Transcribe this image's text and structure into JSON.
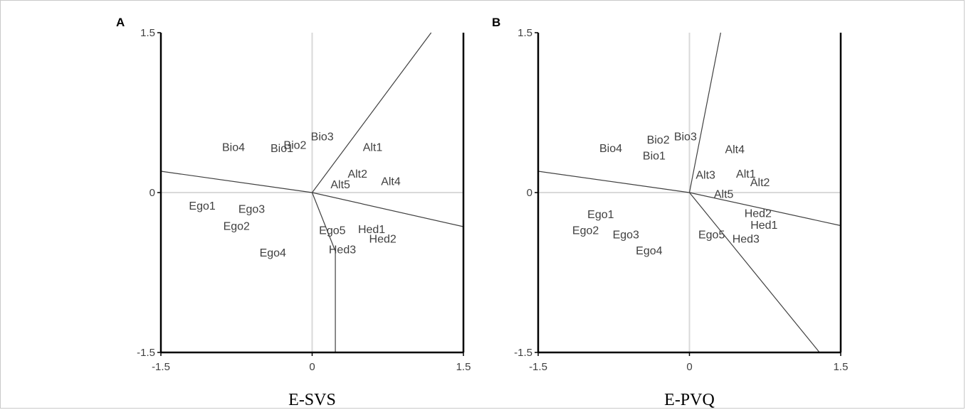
{
  "chart_data": [
    {
      "type": "scatter",
      "panel": "A",
      "title": "",
      "xlabel": "E-SVS",
      "ylabel": "",
      "xlim": [
        -1.5,
        1.5
      ],
      "ylim": [
        -1.5,
        1.5
      ],
      "x_ticks": [
        "-1.5",
        "0",
        "1.5"
      ],
      "y_ticks": [
        "1.5",
        "0",
        "-1.5"
      ],
      "zero_lines": true,
      "points": [
        {
          "label": "Bio4",
          "x": -0.78,
          "y": 0.43
        },
        {
          "label": "Bio1",
          "x": -0.3,
          "y": 0.42
        },
        {
          "label": "Bio2",
          "x": -0.17,
          "y": 0.45
        },
        {
          "label": "Bio3",
          "x": 0.1,
          "y": 0.53
        },
        {
          "label": "Alt1",
          "x": 0.6,
          "y": 0.43
        },
        {
          "label": "Alt2",
          "x": 0.45,
          "y": 0.18
        },
        {
          "label": "Alt4",
          "x": 0.78,
          "y": 0.11
        },
        {
          "label": "Alt5",
          "x": 0.28,
          "y": 0.08
        },
        {
          "label": "Ego1",
          "x": -1.09,
          "y": -0.12
        },
        {
          "label": "Ego3",
          "x": -0.6,
          "y": -0.15
        },
        {
          "label": "Ego2",
          "x": -0.75,
          "y": -0.31
        },
        {
          "label": "Ego4",
          "x": -0.39,
          "y": -0.56
        },
        {
          "label": "Ego5",
          "x": 0.2,
          "y": -0.35
        },
        {
          "label": "Hed1",
          "x": 0.59,
          "y": -0.34
        },
        {
          "label": "Hed2",
          "x": 0.7,
          "y": -0.43
        },
        {
          "label": "Hed3",
          "x": 0.3,
          "y": -0.53
        }
      ],
      "partition_lines": [
        {
          "from": [
            0,
            0
          ],
          "to": [
            -1.5,
            0.2
          ]
        },
        {
          "from": [
            0,
            0
          ],
          "to": [
            1.5,
            -0.32
          ]
        },
        {
          "from": [
            0,
            0
          ],
          "to": [
            1.18,
            1.5
          ]
        },
        {
          "from": [
            0,
            0
          ],
          "to": [
            0.23,
            -0.55
          ]
        },
        {
          "from": [
            0.23,
            -0.55
          ],
          "to": [
            0.23,
            -1.5
          ]
        }
      ]
    },
    {
      "type": "scatter",
      "panel": "B",
      "title": "",
      "xlabel": "E-PVQ",
      "ylabel": "",
      "xlim": [
        -1.5,
        1.5
      ],
      "ylim": [
        -1.5,
        1.5
      ],
      "x_ticks": [
        "-1.5",
        "0",
        "1.5"
      ],
      "y_ticks": [
        "1.5",
        "0",
        "-1.5"
      ],
      "zero_lines": true,
      "points": [
        {
          "label": "Bio4",
          "x": -0.78,
          "y": 0.42
        },
        {
          "label": "Bio2",
          "x": -0.31,
          "y": 0.5
        },
        {
          "label": "Bio3",
          "x": -0.04,
          "y": 0.53
        },
        {
          "label": "Bio1",
          "x": -0.35,
          "y": 0.35
        },
        {
          "label": "Alt4",
          "x": 0.45,
          "y": 0.41
        },
        {
          "label": "Alt3",
          "x": 0.16,
          "y": 0.17
        },
        {
          "label": "Alt1",
          "x": 0.56,
          "y": 0.18
        },
        {
          "label": "Alt2",
          "x": 0.7,
          "y": 0.1
        },
        {
          "label": "Alt5",
          "x": 0.34,
          "y": -0.01
        },
        {
          "label": "Ego1",
          "x": -0.88,
          "y": -0.2
        },
        {
          "label": "Ego2",
          "x": -1.03,
          "y": -0.35
        },
        {
          "label": "Ego3",
          "x": -0.63,
          "y": -0.39
        },
        {
          "label": "Ego4",
          "x": -0.4,
          "y": -0.54
        },
        {
          "label": "Ego5",
          "x": 0.22,
          "y": -0.39
        },
        {
          "label": "Hed2",
          "x": 0.68,
          "y": -0.19
        },
        {
          "label": "Hed1",
          "x": 0.74,
          "y": -0.3
        },
        {
          "label": "Hed3",
          "x": 0.56,
          "y": -0.43
        }
      ],
      "partition_lines": [
        {
          "from": [
            0,
            0
          ],
          "to": [
            -1.5,
            0.2
          ]
        },
        {
          "from": [
            0,
            0
          ],
          "to": [
            1.5,
            -0.31
          ]
        },
        {
          "from": [
            0,
            0
          ],
          "to": [
            0.31,
            1.5
          ]
        },
        {
          "from": [
            0,
            0
          ],
          "to": [
            1.29,
            -1.5
          ]
        }
      ]
    }
  ],
  "colors": {
    "frame": "#000000",
    "zero_line": "#d9d9d9",
    "partition_line": "#404040",
    "label_text": "#404040",
    "border": "#c9c9c9"
  }
}
